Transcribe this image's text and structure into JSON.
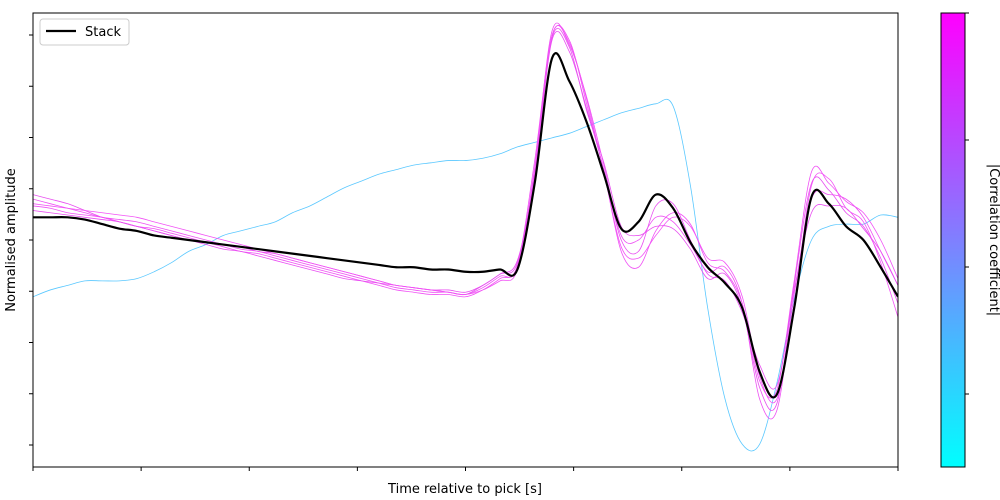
{
  "chart_data": {
    "type": "line",
    "title": "",
    "xlabel": "Time relative to pick [s]",
    "ylabel": "Normalised amplitude",
    "xlim": [
      0,
      1
    ],
    "ylim": [
      -1,
      1
    ],
    "x_tick_count": 9,
    "y_tick_count": 9,
    "grid": false,
    "legend": {
      "placement": "top-left",
      "entries": [
        "Stack"
      ]
    },
    "colorbar": {
      "label": "|Correlation coefficient|",
      "colormap": "cool",
      "colors": [
        "#00ffff",
        "#ff00ff"
      ],
      "ticks": 4
    },
    "x": [
      0,
      0.02,
      0.04,
      0.06,
      0.08,
      0.1,
      0.12,
      0.14,
      0.16,
      0.18,
      0.2,
      0.22,
      0.24,
      0.26,
      0.28,
      0.3,
      0.32,
      0.34,
      0.36,
      0.38,
      0.4,
      0.42,
      0.44,
      0.46,
      0.48,
      0.5,
      0.52,
      0.54,
      0.56,
      0.58,
      0.6,
      0.62,
      0.64,
      0.66,
      0.68,
      0.7,
      0.72,
      0.74,
      0.76,
      0.78,
      0.8,
      0.82,
      0.84,
      0.86,
      0.88,
      0.9,
      0.92,
      0.94,
      0.96,
      0.98,
      1.0
    ],
    "series": [
      {
        "name": "Stack",
        "color": "#000000",
        "width": 2.2,
        "values": [
          0.1,
          0.1,
          0.1,
          0.09,
          0.07,
          0.05,
          0.04,
          0.02,
          0.01,
          0.0,
          -0.01,
          -0.02,
          -0.03,
          -0.04,
          -0.05,
          -0.06,
          -0.07,
          -0.08,
          -0.09,
          -0.1,
          -0.11,
          -0.12,
          -0.12,
          -0.13,
          -0.13,
          -0.14,
          -0.14,
          -0.13,
          -0.13,
          0.25,
          0.8,
          0.7,
          0.52,
          0.29,
          0.05,
          0.08,
          0.2,
          0.14,
          -0.01,
          -0.12,
          -0.19,
          -0.3,
          -0.58,
          -0.68,
          -0.3,
          0.19,
          0.16,
          0.06,
          0.0,
          -0.12,
          -0.25
        ]
      },
      {
        "name": "",
        "color": "#5ac8ff",
        "width": 0.8,
        "values": [
          -0.25,
          -0.22,
          -0.2,
          -0.18,
          -0.18,
          -0.18,
          -0.17,
          -0.14,
          -0.1,
          -0.05,
          -0.02,
          0.02,
          0.04,
          0.06,
          0.08,
          0.12,
          0.15,
          0.19,
          0.23,
          0.26,
          0.29,
          0.31,
          0.33,
          0.34,
          0.35,
          0.35,
          0.36,
          0.38,
          0.41,
          0.43,
          0.45,
          0.47,
          0.5,
          0.53,
          0.56,
          0.58,
          0.6,
          0.59,
          0.24,
          -0.3,
          -0.7,
          -0.9,
          -0.9,
          -0.63,
          -0.26,
          0.0,
          0.06,
          0.07,
          0.07,
          0.11,
          0.1
        ]
      },
      {
        "name": "",
        "color": "#e84ff0",
        "width": 0.8,
        "values": [
          0.2,
          0.18,
          0.16,
          0.13,
          0.1,
          0.08,
          0.06,
          0.04,
          0.02,
          0.0,
          -0.01,
          -0.02,
          -0.03,
          -0.05,
          -0.06,
          -0.08,
          -0.1,
          -0.12,
          -0.14,
          -0.16,
          -0.18,
          -0.2,
          -0.21,
          -0.22,
          -0.22,
          -0.23,
          -0.2,
          -0.15,
          -0.1,
          0.3,
          0.89,
          0.85,
          0.57,
          0.34,
          0.06,
          0.02,
          0.06,
          0.05,
          -0.04,
          -0.17,
          -0.15,
          -0.3,
          -0.65,
          -0.72,
          -0.2,
          0.25,
          0.22,
          0.12,
          0.06,
          -0.08,
          -0.28
        ]
      },
      {
        "name": "",
        "color": "#ee50f4",
        "width": 0.8,
        "values": [
          0.18,
          0.16,
          0.14,
          0.12,
          0.1,
          0.09,
          0.08,
          0.06,
          0.04,
          0.02,
          0.0,
          -0.02,
          -0.04,
          -0.05,
          -0.07,
          -0.09,
          -0.11,
          -0.13,
          -0.15,
          -0.17,
          -0.19,
          -0.21,
          -0.22,
          -0.23,
          -0.23,
          -0.24,
          -0.21,
          -0.16,
          -0.12,
          0.32,
          0.92,
          0.86,
          0.63,
          0.33,
          0.02,
          0.0,
          0.1,
          0.08,
          -0.02,
          -0.14,
          -0.12,
          -0.28,
          -0.7,
          -0.75,
          -0.24,
          0.18,
          0.2,
          0.18,
          0.1,
          -0.05,
          -0.2
        ]
      },
      {
        "name": "",
        "color": "#f050f5",
        "width": 0.8,
        "values": [
          0.15,
          0.14,
          0.12,
          0.11,
          0.1,
          0.08,
          0.06,
          0.05,
          0.03,
          0.01,
          -0.01,
          -0.03,
          -0.05,
          -0.06,
          -0.08,
          -0.1,
          -0.12,
          -0.14,
          -0.16,
          -0.18,
          -0.2,
          -0.22,
          -0.23,
          -0.24,
          -0.24,
          -0.25,
          -0.22,
          -0.17,
          -0.11,
          0.35,
          0.9,
          0.88,
          0.6,
          0.3,
          -0.05,
          -0.12,
          0.04,
          0.12,
          0.07,
          -0.1,
          -0.14,
          -0.28,
          -0.62,
          -0.66,
          -0.18,
          0.3,
          0.25,
          0.17,
          0.12,
          0.0,
          -0.17
        ]
      },
      {
        "name": "",
        "color": "#e94ef2",
        "width": 0.8,
        "values": [
          0.13,
          0.12,
          0.11,
          0.1,
          0.09,
          0.08,
          0.06,
          0.04,
          0.02,
          0.0,
          -0.02,
          -0.04,
          -0.05,
          -0.07,
          -0.09,
          -0.11,
          -0.13,
          -0.15,
          -0.17,
          -0.18,
          -0.19,
          -0.2,
          -0.21,
          -0.22,
          -0.23,
          -0.24,
          -0.2,
          -0.15,
          -0.09,
          0.28,
          0.88,
          0.83,
          0.58,
          0.31,
          0.0,
          -0.05,
          0.15,
          0.16,
          0.0,
          -0.15,
          -0.18,
          -0.32,
          -0.55,
          -0.64,
          -0.22,
          0.12,
          0.15,
          0.14,
          0.05,
          -0.05,
          -0.2
        ]
      },
      {
        "name": "",
        "color": "#f252f6",
        "width": 0.8,
        "values": [
          0.16,
          0.15,
          0.14,
          0.13,
          0.12,
          0.11,
          0.1,
          0.08,
          0.06,
          0.04,
          0.02,
          0.0,
          -0.02,
          -0.04,
          -0.06,
          -0.08,
          -0.1,
          -0.12,
          -0.14,
          -0.16,
          -0.18,
          -0.2,
          -0.21,
          -0.22,
          -0.23,
          -0.24,
          -0.22,
          -0.18,
          -0.13,
          0.3,
          0.9,
          0.87,
          0.62,
          0.3,
          -0.03,
          -0.08,
          0.02,
          0.1,
          0.06,
          -0.08,
          -0.1,
          -0.25,
          -0.6,
          -0.7,
          -0.28,
          0.24,
          0.27,
          0.14,
          0.08,
          -0.1,
          -0.34
        ]
      }
    ]
  }
}
